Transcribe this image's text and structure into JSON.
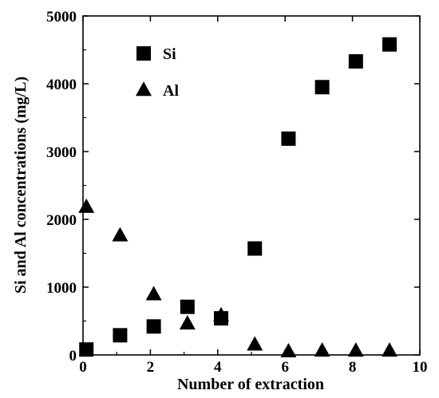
{
  "chart_data": {
    "type": "scatter",
    "xlabel": "Number of extraction",
    "ylabel": "Si and Al concentrations (mg/L)",
    "xlim": [
      0,
      10
    ],
    "ylim": [
      0,
      5000
    ],
    "xticks": [
      0,
      2,
      4,
      6,
      8,
      10
    ],
    "yticks": [
      0,
      1000,
      2000,
      3000,
      4000,
      5000
    ],
    "grid": false,
    "legend_position": "top-left",
    "series": [
      {
        "name": "Si",
        "marker": "square",
        "color": "#000000",
        "x": [
          0.1,
          1.1,
          2.1,
          3.1,
          4.1,
          5.1,
          6.1,
          7.1,
          8.1,
          9.1
        ],
        "y": [
          80,
          290,
          420,
          710,
          540,
          1570,
          3190,
          3950,
          4330,
          4580
        ]
      },
      {
        "name": "Al",
        "marker": "triangle",
        "color": "#000000",
        "x": [
          0.1,
          1.1,
          2.1,
          3.1,
          4.1,
          5.1,
          6.1,
          7.1,
          8.1,
          9.1
        ],
        "y": [
          2180,
          1760,
          890,
          460,
          580,
          150,
          50,
          60,
          60,
          60
        ]
      }
    ]
  }
}
